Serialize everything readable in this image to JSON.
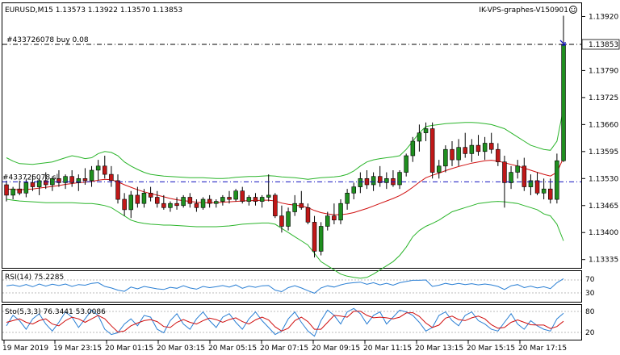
{
  "header": {
    "symbol_line": "EURUSD,M15  1.13573 1.13922 1.13570 1.13853",
    "indicator_name": "IK-VPS-graphes-V150901",
    "face_icon": "smiley-icon"
  },
  "orders": {
    "buy_label": "#433726078 buy 0.08",
    "sl_label": "#433726078 sl",
    "buy_price": 1.13853,
    "sl_price": 1.13522
  },
  "price_axis": {
    "labels": [
      "1.13920",
      "1.13853",
      "1.13790",
      "1.13725",
      "1.13660",
      "1.13595",
      "1.13530",
      "1.13465",
      "1.13400",
      "1.13335"
    ],
    "current_price": "1.13853"
  },
  "rsi": {
    "label": "RSI(14) 75.2285",
    "levels": [
      "70",
      "30"
    ],
    "last_value": 75.2285
  },
  "stoch": {
    "label": "Sto(5,3,3) 76.3441 53.0086",
    "levels": [
      "80",
      "20"
    ],
    "main": 76.3441,
    "signal": 53.0086
  },
  "time_axis": [
    "19 Mar 2019",
    "19 Mar 23:15",
    "20 Mar 01:15",
    "20 Mar 03:15",
    "20 Mar 05:15",
    "20 Mar 07:15",
    "20 Mar 09:15",
    "20 Mar 11:15",
    "20 Mar 13:15",
    "20 Mar 15:15",
    "20 Mar 17:15"
  ],
  "colors": {
    "bull": "#1f8f1f",
    "bear": "#c01818",
    "band": "#2bb52b",
    "ma": "#d01010",
    "sl_line": "#1010c0",
    "rsi": "#2a7fd4",
    "stoch_main": "#2a7fd4",
    "stoch_signal": "#d01010"
  },
  "chart_data": {
    "type": "candlestick",
    "symbol": "EURUSD",
    "timeframe": "M15",
    "ohlc": [
      [
        1.13515,
        1.13525,
        1.13475,
        1.1349
      ],
      [
        1.1349,
        1.1351,
        1.1348,
        1.13505
      ],
      [
        1.13505,
        1.13525,
        1.1349,
        1.13495
      ],
      [
        1.13495,
        1.1353,
        1.13485,
        1.1352
      ],
      [
        1.1352,
        1.1354,
        1.135,
        1.1351
      ],
      [
        1.1351,
        1.1353,
        1.1349,
        1.13525
      ],
      [
        1.13525,
        1.13545,
        1.13505,
        1.13515
      ],
      [
        1.13515,
        1.13535,
        1.135,
        1.1353
      ],
      [
        1.1353,
        1.1355,
        1.1351,
        1.1352
      ],
      [
        1.1352,
        1.1354,
        1.13505,
        1.13535
      ],
      [
        1.13535,
        1.1355,
        1.1351,
        1.1352
      ],
      [
        1.1352,
        1.1354,
        1.135,
        1.1353
      ],
      [
        1.1353,
        1.13555,
        1.13515,
        1.13525
      ],
      [
        1.13525,
        1.1356,
        1.1351,
        1.1355
      ],
      [
        1.1355,
        1.13575,
        1.13525,
        1.1356
      ],
      [
        1.1356,
        1.13585,
        1.1353,
        1.1354
      ],
      [
        1.1354,
        1.1356,
        1.1351,
        1.13525
      ],
      [
        1.13525,
        1.1354,
        1.1347,
        1.1348
      ],
      [
        1.1348,
        1.13495,
        1.1344,
        1.13455
      ],
      [
        1.13455,
        1.135,
        1.13435,
        1.1349
      ],
      [
        1.1349,
        1.1351,
        1.1346,
        1.1347
      ],
      [
        1.1347,
        1.13505,
        1.1346,
        1.13495
      ],
      [
        1.13495,
        1.1351,
        1.13475,
        1.13485
      ],
      [
        1.13485,
        1.135,
        1.1346,
        1.1347
      ],
      [
        1.1347,
        1.1349,
        1.13455,
        1.1346
      ],
      [
        1.1346,
        1.13475,
        1.1345,
        1.1347
      ],
      [
        1.1347,
        1.13485,
        1.13455,
        1.13465
      ],
      [
        1.13465,
        1.1349,
        1.1346,
        1.13485
      ],
      [
        1.13485,
        1.13495,
        1.1346,
        1.1347
      ],
      [
        1.1347,
        1.1348,
        1.1345,
        1.1346
      ],
      [
        1.1346,
        1.13485,
        1.13455,
        1.1348
      ],
      [
        1.1348,
        1.1349,
        1.1346,
        1.1347
      ],
      [
        1.1347,
        1.1348,
        1.1346,
        1.13475
      ],
      [
        1.13475,
        1.1349,
        1.13465,
        1.13485
      ],
      [
        1.13485,
        1.135,
        1.1347,
        1.1348
      ],
      [
        1.1348,
        1.13505,
        1.13475,
        1.135
      ],
      [
        1.135,
        1.1351,
        1.1347,
        1.13475
      ],
      [
        1.13475,
        1.1349,
        1.13465,
        1.13485
      ],
      [
        1.13485,
        1.13495,
        1.13465,
        1.13475
      ],
      [
        1.13475,
        1.1349,
        1.1346,
        1.13485
      ],
      [
        1.13485,
        1.1354,
        1.13475,
        1.1349
      ],
      [
        1.1349,
        1.13495,
        1.13435,
        1.1344
      ],
      [
        1.1344,
        1.13465,
        1.134,
        1.13415
      ],
      [
        1.13415,
        1.1346,
        1.13405,
        1.1345
      ],
      [
        1.1345,
        1.1349,
        1.1344,
        1.1347
      ],
      [
        1.1347,
        1.135,
        1.13455,
        1.1346
      ],
      [
        1.1346,
        1.1347,
        1.1342,
        1.13425
      ],
      [
        1.13425,
        1.1344,
        1.1334,
        1.13355
      ],
      [
        1.13355,
        1.13425,
        1.13345,
        1.13415
      ],
      [
        1.13415,
        1.1345,
        1.13405,
        1.1344
      ],
      [
        1.1344,
        1.1347,
        1.1342,
        1.1343
      ],
      [
        1.1343,
        1.1348,
        1.1342,
        1.1347
      ],
      [
        1.1347,
        1.13505,
        1.13455,
        1.13495
      ],
      [
        1.13495,
        1.1352,
        1.1348,
        1.1351
      ],
      [
        1.1351,
        1.13545,
        1.13495,
        1.1353
      ],
      [
        1.1353,
        1.1355,
        1.13505,
        1.13515
      ],
      [
        1.13515,
        1.13545,
        1.135,
        1.13535
      ],
      [
        1.13535,
        1.1356,
        1.1351,
        1.1352
      ],
      [
        1.1352,
        1.13545,
        1.13505,
        1.1353
      ],
      [
        1.1353,
        1.1355,
        1.1351,
        1.13515
      ],
      [
        1.13515,
        1.1355,
        1.13505,
        1.13545
      ],
      [
        1.13545,
        1.1359,
        1.13535,
        1.13585
      ],
      [
        1.13585,
        1.1363,
        1.1357,
        1.1362
      ],
      [
        1.1362,
        1.1366,
        1.13595,
        1.1364
      ],
      [
        1.1364,
        1.13665,
        1.1362,
        1.1365
      ],
      [
        1.1365,
        1.13665,
        1.1353,
        1.13545
      ],
      [
        1.13545,
        1.13575,
        1.1353,
        1.1356
      ],
      [
        1.1356,
        1.1361,
        1.13545,
        1.136
      ],
      [
        1.136,
        1.1362,
        1.1356,
        1.13575
      ],
      [
        1.13575,
        1.13625,
        1.1356,
        1.13605
      ],
      [
        1.13605,
        1.1364,
        1.1358,
        1.1359
      ],
      [
        1.1359,
        1.13625,
        1.1357,
        1.1361
      ],
      [
        1.1361,
        1.13635,
        1.13585,
        1.13595
      ],
      [
        1.13595,
        1.1363,
        1.13575,
        1.13615
      ],
      [
        1.13615,
        1.1364,
        1.1359,
        1.136
      ],
      [
        1.136,
        1.13615,
        1.1356,
        1.1357
      ],
      [
        1.1357,
        1.13585,
        1.1346,
        1.1352
      ],
      [
        1.1352,
        1.1356,
        1.13505,
        1.13545
      ],
      [
        1.13545,
        1.13575,
        1.1353,
        1.1356
      ],
      [
        1.1356,
        1.1358,
        1.135,
        1.1351
      ],
      [
        1.1351,
        1.1354,
        1.1349,
        1.13525
      ],
      [
        1.13525,
        1.13545,
        1.1349,
        1.13495
      ],
      [
        1.13495,
        1.1353,
        1.1348,
        1.13505
      ],
      [
        1.13505,
        1.1353,
        1.1347,
        1.1348
      ],
      [
        1.1348,
        1.1359,
        1.1347,
        1.13573
      ],
      [
        1.13573,
        1.13922,
        1.1357,
        1.13853
      ]
    ],
    "bollinger_upper": [
      1.1358,
      1.13572,
      1.13566,
      1.13565,
      1.13564,
      1.13566,
      1.13568,
      1.1357,
      1.13575,
      1.1358,
      1.13585,
      1.13582,
      1.13578,
      1.1358,
      1.1359,
      1.13595,
      1.13593,
      1.13585,
      1.1357,
      1.1356,
      1.13552,
      1.13545,
      1.1354,
      1.13538,
      1.13536,
      1.13535,
      1.13534,
      1.13533,
      1.13532,
      1.13532,
      1.13532,
      1.13531,
      1.1353,
      1.1353,
      1.13531,
      1.13533,
      1.13534,
      1.13535,
      1.13535,
      1.13536,
      1.13537,
      1.13536,
      1.13534,
      1.13533,
      1.13532,
      1.1353,
      1.13528,
      1.1353,
      1.13532,
      1.13533,
      1.13534,
      1.13536,
      1.1354,
      1.13548,
      1.1356,
      1.1357,
      1.13575,
      1.13578,
      1.1358,
      1.13582,
      1.13585,
      1.136,
      1.1362,
      1.1364,
      1.13655,
      1.13658,
      1.1366,
      1.13662,
      1.13663,
      1.13664,
      1.13665,
      1.13665,
      1.13664,
      1.13662,
      1.1366,
      1.13655,
      1.1365,
      1.1364,
      1.1363,
      1.1362,
      1.1361,
      1.13605,
      1.136,
      1.13598,
      1.1362,
      1.137
    ],
    "bollinger_lower": [
      1.1348,
      1.13478,
      1.13476,
      1.13475,
      1.13474,
      1.13473,
      1.13472,
      1.13472,
      1.13472,
      1.13472,
      1.13472,
      1.13471,
      1.1347,
      1.1347,
      1.13468,
      1.13465,
      1.1346,
      1.1345,
      1.1344,
      1.1343,
      1.13425,
      1.13422,
      1.1342,
      1.13419,
      1.13418,
      1.13418,
      1.13417,
      1.13416,
      1.13415,
      1.13414,
      1.13414,
      1.13414,
      1.13414,
      1.13415,
      1.13416,
      1.13418,
      1.1342,
      1.13421,
      1.13422,
      1.13423,
      1.13423,
      1.1342,
      1.1341,
      1.134,
      1.1339,
      1.1338,
      1.1337,
      1.1335,
      1.1333,
      1.1332,
      1.1331,
      1.133,
      1.13295,
      1.13292,
      1.1329,
      1.13292,
      1.133,
      1.1331,
      1.1332,
      1.1333,
      1.13345,
      1.13365,
      1.1339,
      1.13405,
      1.13415,
      1.13422,
      1.1343,
      1.1344,
      1.1345,
      1.13455,
      1.1346,
      1.13465,
      1.1347,
      1.13472,
      1.13474,
      1.13475,
      1.13474,
      1.13472,
      1.1347,
      1.13465,
      1.1346,
      1.13455,
      1.13445,
      1.1344,
      1.1342,
      1.1338
    ],
    "moving_average": [
      1.13505,
      1.13504,
      1.13503,
      1.13504,
      1.13505,
      1.13507,
      1.13509,
      1.13511,
      1.13513,
      1.13516,
      1.13518,
      1.1352,
      1.13521,
      1.13523,
      1.13526,
      1.13528,
      1.13527,
      1.13522,
      1.13515,
      1.13509,
      1.13503,
      1.13498,
      1.13494,
      1.1349,
      1.13486,
      1.13482,
      1.13479,
      1.13477,
      1.13475,
      1.13473,
      1.13472,
      1.13472,
      1.13472,
      1.13473,
      1.13474,
      1.13475,
      1.13476,
      1.13477,
      1.13477,
      1.13478,
      1.13478,
      1.13476,
      1.13471,
      1.13468,
      1.13466,
      1.13464,
      1.1346,
      1.13453,
      1.13448,
      1.13445,
      1.13443,
      1.13443,
      1.13445,
      1.13448,
      1.13453,
      1.13458,
      1.13464,
      1.1347,
      1.13476,
      1.13482,
      1.13489,
      1.13498,
      1.13509,
      1.13521,
      1.13532,
      1.13538,
      1.13543,
      1.13549,
      1.13554,
      1.13559,
      1.13563,
      1.13567,
      1.1357,
      1.13573,
      1.13574,
      1.13572,
      1.13568,
      1.13564,
      1.1356,
      1.13555,
      1.1355,
      1.13545,
      1.1354,
      1.13536,
      1.13545,
      1.1358
    ],
    "rsi_values": [
      52,
      55,
      50,
      56,
      49,
      58,
      51,
      57,
      53,
      58,
      50,
      56,
      54,
      60,
      62,
      50,
      45,
      38,
      34,
      48,
      42,
      50,
      46,
      42,
      40,
      47,
      44,
      52,
      45,
      41,
      50,
      46,
      49,
      53,
      48,
      55,
      44,
      51,
      47,
      52,
      53,
      38,
      33,
      46,
      52,
      45,
      36,
      28,
      45,
      52,
      48,
      55,
      60,
      62,
      64,
      57,
      62,
      55,
      60,
      54,
      62,
      66,
      70,
      70,
      71,
      50,
      54,
      60,
      56,
      60,
      56,
      59,
      55,
      58,
      55,
      50,
      40,
      52,
      56,
      46,
      51,
      45,
      49,
      43,
      62,
      75.2285
    ],
    "stoch_main": [
      40,
      70,
      55,
      30,
      60,
      75,
      45,
      25,
      50,
      80,
      65,
      35,
      60,
      85,
      70,
      30,
      15,
      20,
      45,
      60,
      40,
      70,
      65,
      30,
      20,
      55,
      75,
      45,
      30,
      60,
      80,
      55,
      35,
      65,
      75,
      50,
      30,
      60,
      80,
      55,
      35,
      15,
      25,
      60,
      80,
      50,
      25,
      10,
      55,
      85,
      70,
      45,
      80,
      90,
      75,
      45,
      70,
      80,
      45,
      65,
      85,
      80,
      70,
      50,
      25,
      35,
      70,
      80,
      55,
      40,
      70,
      80,
      55,
      45,
      30,
      25,
      50,
      75,
      45,
      30,
      55,
      40,
      30,
      25,
      60,
      76.3441
    ],
    "stoch_signal": [
      50,
      55,
      60,
      50,
      45,
      55,
      60,
      45,
      40,
      55,
      65,
      60,
      50,
      60,
      70,
      60,
      40,
      22,
      25,
      40,
      48,
      55,
      58,
      52,
      38,
      35,
      50,
      58,
      50,
      45,
      55,
      62,
      58,
      50,
      58,
      63,
      52,
      45,
      57,
      65,
      57,
      37,
      25,
      33,
      55,
      65,
      52,
      30,
      30,
      50,
      70,
      68,
      65,
      82,
      82,
      70,
      63,
      65,
      63,
      60,
      65,
      77,
      78,
      67,
      48,
      35,
      42,
      62,
      68,
      58,
      55,
      63,
      68,
      60,
      43,
      33,
      35,
      50,
      57,
      50,
      43,
      42,
      42,
      32,
      38,
      53.0086
    ]
  }
}
